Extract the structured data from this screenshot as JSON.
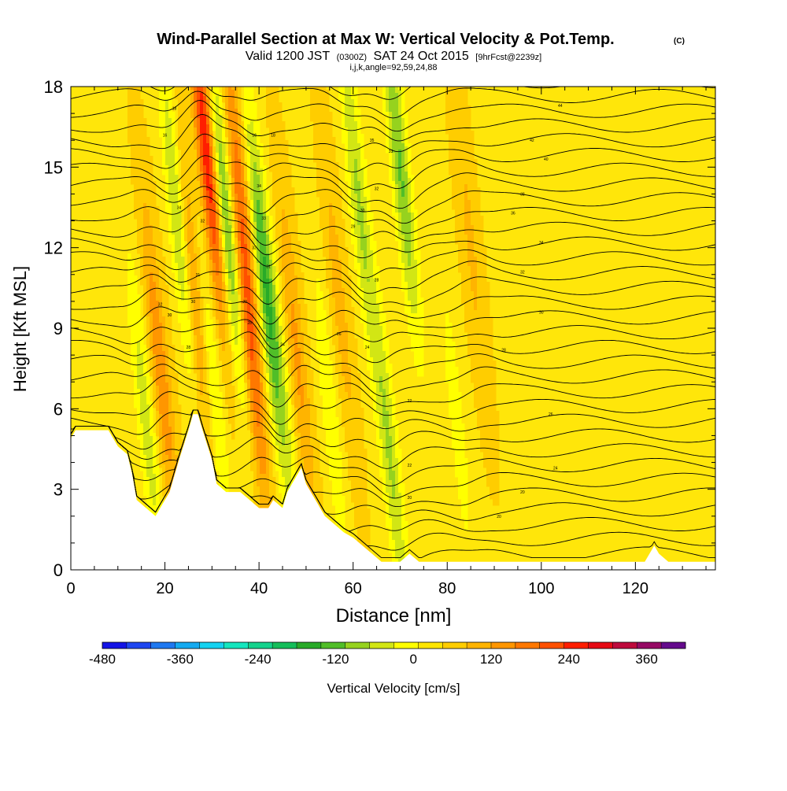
{
  "chart_data": {
    "type": "heatmap",
    "title": "Wind-Parallel Section at Max W: Vertical Velocity & Pot.Temp.",
    "copyright": "(C)",
    "subtitle": {
      "valid": "Valid 1200 JST",
      "utc": "(0300Z)",
      "date": "SAT 24 Oct 2015",
      "fcst": "[9hrFcst@2239z]"
    },
    "indices": "i,j,k,angle=92,59,24,88",
    "xlabel": "Distance [nm]",
    "ylabel": "Height [Kft MSL]",
    "xlim": [
      0,
      137
    ],
    "ylim": [
      0,
      18
    ],
    "x_ticks": [
      "0",
      "20",
      "40",
      "60",
      "80",
      "100",
      "120"
    ],
    "y_ticks": [
      "0",
      "3",
      "6",
      "9",
      "12",
      "15",
      "18"
    ],
    "colorbar": {
      "label": "Vertical Velocity [cm/s]",
      "tick_labels": [
        "-480",
        "-360",
        "-240",
        "-120",
        "0",
        "120",
        "240",
        "360"
      ],
      "min": -480,
      "max": 420,
      "colors": [
        "#1414e6",
        "#1e46f0",
        "#1e78f0",
        "#14aaf0",
        "#14d2f0",
        "#14e6be",
        "#14d28c",
        "#14be5a",
        "#28aa28",
        "#50be28",
        "#96d21e",
        "#d2e614",
        "#ffff00",
        "#ffe600",
        "#ffcd00",
        "#ffb400",
        "#ff9600",
        "#ff7800",
        "#ff5000",
        "#ff1e00",
        "#e60a14",
        "#be0a3c",
        "#960a64",
        "#640a8c"
      ]
    },
    "terrain_kft": [
      [
        0,
        4.9
      ],
      [
        1,
        5.2
      ],
      [
        8,
        5.2
      ],
      [
        9,
        4.9
      ],
      [
        10,
        4.6
      ],
      [
        12,
        4.3
      ],
      [
        13,
        3.6
      ],
      [
        14,
        2.6
      ],
      [
        16,
        2.3
      ],
      [
        18,
        2.0
      ],
      [
        20,
        2.6
      ],
      [
        21,
        2.9
      ],
      [
        23,
        4.1
      ],
      [
        25,
        5.2
      ],
      [
        26,
        5.8
      ],
      [
        27,
        5.8
      ],
      [
        28,
        5.2
      ],
      [
        30,
        4.1
      ],
      [
        31,
        3.2
      ],
      [
        33,
        2.9
      ],
      [
        36,
        2.9
      ],
      [
        38,
        2.6
      ],
      [
        40,
        2.3
      ],
      [
        42,
        2.3
      ],
      [
        43,
        2.6
      ],
      [
        45,
        2.3
      ],
      [
        46,
        2.9
      ],
      [
        48,
        3.5
      ],
      [
        49,
        3.8
      ],
      [
        50,
        3.2
      ],
      [
        52,
        2.6
      ],
      [
        54,
        2.0
      ],
      [
        56,
        1.7
      ],
      [
        58,
        1.4
      ],
      [
        60,
        1.2
      ],
      [
        62,
        0.9
      ],
      [
        64,
        0.6
      ],
      [
        66,
        0.3
      ],
      [
        68,
        0.3
      ],
      [
        70,
        0.3
      ],
      [
        72,
        0.6
      ],
      [
        74,
        0.3
      ],
      [
        122,
        0.3
      ],
      [
        123,
        0.6
      ],
      [
        124,
        0.9
      ],
      [
        125,
        0.6
      ],
      [
        127,
        0.3
      ],
      [
        137,
        0.3
      ]
    ],
    "updrafts": [
      {
        "x": 29,
        "y": 15.5,
        "w": 240
      },
      {
        "x": 26,
        "y": 10.5,
        "w": 150
      },
      {
        "x": 38,
        "y": 8.5,
        "w": 150
      },
      {
        "x": 36,
        "y": 14.5,
        "w": 110
      },
      {
        "x": 19,
        "y": 7.5,
        "w": 110
      },
      {
        "x": 48,
        "y": 8.0,
        "w": 90
      },
      {
        "x": 57,
        "y": 10.0,
        "w": 60
      },
      {
        "x": 85,
        "y": 12.0,
        "w": 50
      }
    ],
    "downdrafts": [
      {
        "x": 23,
        "y": 13.0,
        "w": -150
      },
      {
        "x": 33,
        "y": 13.0,
        "w": -190
      },
      {
        "x": 41,
        "y": 11.0,
        "w": -170
      },
      {
        "x": 70,
        "y": 15.0,
        "w": -150
      },
      {
        "x": 61,
        "y": 14.0,
        "w": -110
      },
      {
        "x": 68,
        "y": 4.0,
        "w": -110
      },
      {
        "x": 16,
        "y": 5.5,
        "w": -90
      },
      {
        "x": 30,
        "y": 7.0,
        "w": -90
      },
      {
        "x": 45,
        "y": 6.5,
        "w": -70
      },
      {
        "x": 55,
        "y": 6.0,
        "w": -60
      },
      {
        "x": 82,
        "y": 5.5,
        "w": -50
      }
    ],
    "theta_labels": [
      {
        "x": 22,
        "y": 17.2,
        "text": "18"
      },
      {
        "x": 20,
        "y": 16.2,
        "text": "16"
      },
      {
        "x": 39,
        "y": 16.2,
        "text": "16"
      },
      {
        "x": 43,
        "y": 16.2,
        "text": "18"
      },
      {
        "x": 23,
        "y": 13.5,
        "text": "34"
      },
      {
        "x": 28,
        "y": 13.0,
        "text": "32"
      },
      {
        "x": 40,
        "y": 14.3,
        "text": "34"
      },
      {
        "x": 41,
        "y": 13.1,
        "text": "33"
      },
      {
        "x": 39,
        "y": 12.0,
        "text": "32"
      },
      {
        "x": 42,
        "y": 11.3,
        "text": "31"
      },
      {
        "x": 27,
        "y": 11.0,
        "text": "31"
      },
      {
        "x": 26,
        "y": 10.0,
        "text": "30"
      },
      {
        "x": 19,
        "y": 9.9,
        "text": "32"
      },
      {
        "x": 21,
        "y": 9.5,
        "text": "30"
      },
      {
        "x": 37,
        "y": 10.0,
        "text": "29"
      },
      {
        "x": 38,
        "y": 9.2,
        "text": "28"
      },
      {
        "x": 25,
        "y": 8.3,
        "text": "28"
      },
      {
        "x": 45,
        "y": 8.4,
        "text": "24"
      },
      {
        "x": 57,
        "y": 8.8,
        "text": "26"
      },
      {
        "x": 63,
        "y": 8.3,
        "text": "24"
      },
      {
        "x": 72,
        "y": 6.3,
        "text": "22"
      },
      {
        "x": 65,
        "y": 10.8,
        "text": "28"
      },
      {
        "x": 60,
        "y": 12.8,
        "text": "29"
      },
      {
        "x": 62,
        "y": 13.4,
        "text": "30"
      },
      {
        "x": 65,
        "y": 14.2,
        "text": "32"
      },
      {
        "x": 68,
        "y": 15.6,
        "text": "33"
      },
      {
        "x": 64,
        "y": 16.0,
        "text": "35"
      },
      {
        "x": 104,
        "y": 17.3,
        "text": "44"
      },
      {
        "x": 98,
        "y": 16.0,
        "text": "42"
      },
      {
        "x": 101,
        "y": 15.3,
        "text": "40"
      },
      {
        "x": 96,
        "y": 14.0,
        "text": "38"
      },
      {
        "x": 94,
        "y": 13.3,
        "text": "36"
      },
      {
        "x": 100,
        "y": 12.2,
        "text": "34"
      },
      {
        "x": 96,
        "y": 11.1,
        "text": "32"
      },
      {
        "x": 100,
        "y": 9.6,
        "text": "30"
      },
      {
        "x": 92,
        "y": 8.2,
        "text": "28"
      },
      {
        "x": 102,
        "y": 5.8,
        "text": "26"
      },
      {
        "x": 103,
        "y": 3.8,
        "text": "24"
      },
      {
        "x": 72,
        "y": 3.9,
        "text": "22"
      },
      {
        "x": 72,
        "y": 2.7,
        "text": "20"
      },
      {
        "x": 96,
        "y": 2.9,
        "text": "20"
      },
      {
        "x": 91,
        "y": 2.0,
        "text": "20"
      }
    ]
  }
}
